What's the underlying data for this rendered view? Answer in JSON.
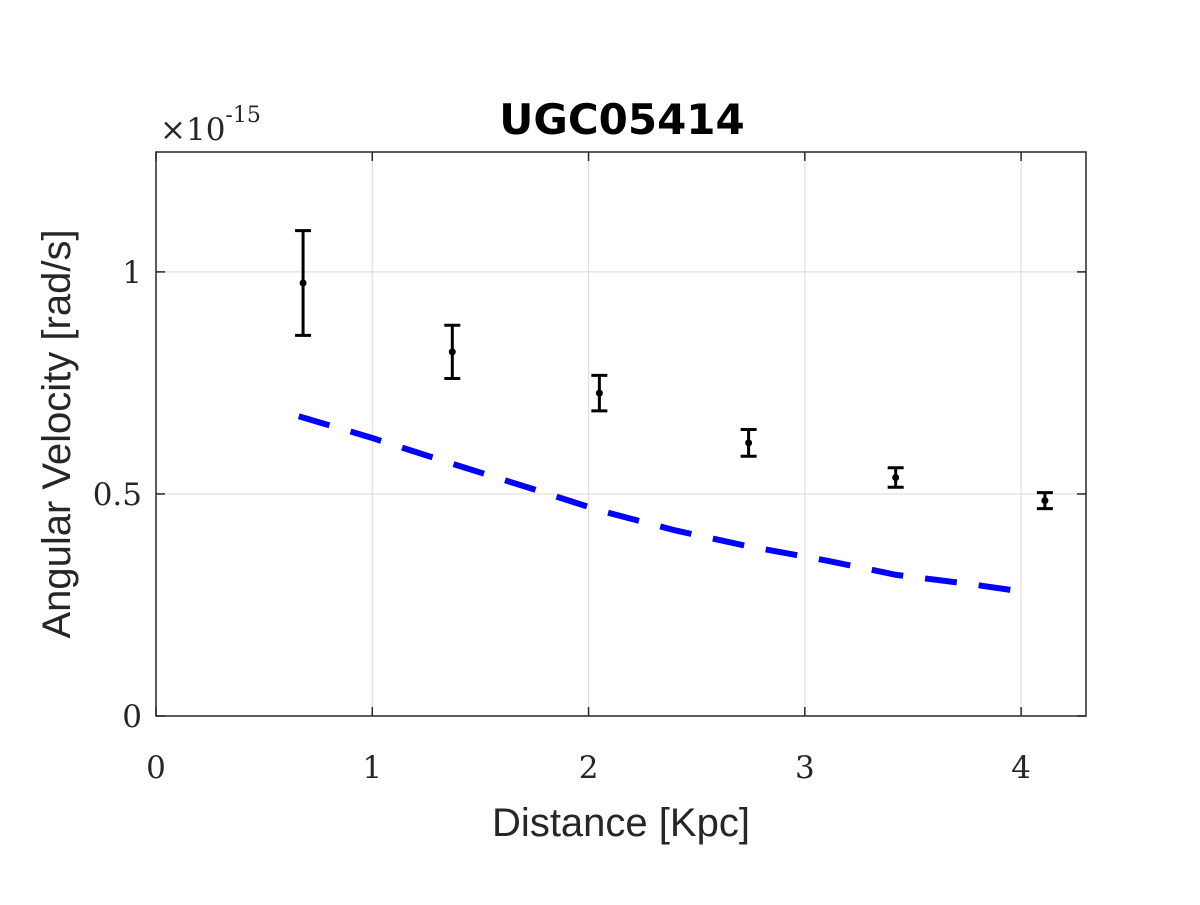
{
  "chart_data": {
    "type": "scatter",
    "title": "UGC05414",
    "xlabel": "Distance [Kpc]",
    "ylabel": "Angular Velocity [rad/s]",
    "y_exponent_label": "×10",
    "y_exponent_power": "-15",
    "xlim": [
      0,
      4.3
    ],
    "ylim": [
      0,
      1.27
    ],
    "x_ticks": [
      0,
      1,
      2,
      3,
      4
    ],
    "x_tick_labels": [
      "0",
      "1",
      "2",
      "3",
      "4"
    ],
    "y_ticks": [
      0,
      0.5,
      1
    ],
    "y_tick_labels": [
      "0",
      "0.5",
      "1"
    ],
    "grid": true,
    "series": [
      {
        "style": "errorbar",
        "color": "#000000",
        "points": [
          {
            "x": 0.68,
            "y": 0.975,
            "err": 0.118
          },
          {
            "x": 1.37,
            "y": 0.82,
            "err": 0.06
          },
          {
            "x": 2.05,
            "y": 0.727,
            "err": 0.04
          },
          {
            "x": 2.74,
            "y": 0.615,
            "err": 0.03
          },
          {
            "x": 3.42,
            "y": 0.537,
            "err": 0.022
          },
          {
            "x": 4.11,
            "y": 0.485,
            "err": 0.018
          }
        ]
      },
      {
        "style": "dashed-line",
        "color": "#0000ff",
        "x": [
          0.66,
          1.0,
          1.37,
          1.75,
          2.05,
          2.4,
          2.74,
          3.1,
          3.42,
          3.75,
          4.05
        ],
        "y": [
          0.675,
          0.626,
          0.568,
          0.51,
          0.463,
          0.418,
          0.382,
          0.35,
          0.318,
          0.298,
          0.277
        ]
      }
    ]
  }
}
